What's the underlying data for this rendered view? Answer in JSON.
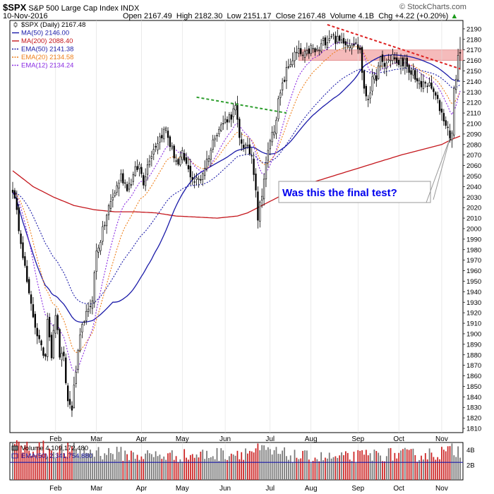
{
  "header": {
    "ticker": "$SPX",
    "description": "S&P 500 Large Cap Index",
    "exchange": "INDX",
    "date": "10-Nov-2016",
    "open_label": "Open",
    "open": "2167.49",
    "high_label": "High",
    "high": "2182.30",
    "low_label": "Low",
    "low": "2151.17",
    "close_label": "Close",
    "close": "2167.48",
    "volume_label": "Volume",
    "volume": "4.1B",
    "chg_label": "Chg",
    "chg": "+4.22 (+0.20%)",
    "watermark": "© StockCharts.com"
  },
  "legend": [
    {
      "label": "$SPX (Daily) 2167.48",
      "color": "#000000",
      "style": "candle"
    },
    {
      "label": "MA(50) 2146.00",
      "color": "#1a1aa8",
      "style": "solid"
    },
    {
      "label": "MA(200) 2088.40",
      "color": "#c4161c",
      "style": "solid"
    },
    {
      "label": "EMA(50) 2141.38",
      "color": "#1a1aa8",
      "style": "dotted"
    },
    {
      "label": "EMA(20) 2134.58",
      "color": "#ee7f1a",
      "style": "dotted"
    },
    {
      "label": "EMA(12) 2134.24",
      "color": "#8a2be2",
      "style": "dotted"
    }
  ],
  "volume_legend": [
    {
      "label": "Volume 4,109,172,480",
      "color": "#000000"
    },
    {
      "label": "EMA(50) 2,341,754,880",
      "color": "#1a1aa8"
    }
  ],
  "annotation": {
    "text": "Was this the final test?"
  },
  "colors": {
    "up": "#ffffff",
    "down": "#000000",
    "volume_up": "#777777",
    "volume_down": "#cc2222",
    "resistance_band": "#f4b0b0",
    "trendline_green": "#2e9e2e",
    "trendline_red": "#dd2222"
  },
  "chart_data": {
    "type": "candlestick",
    "x_unit": "trading day index (0 = first trading day of Jan 2016)",
    "months": [
      {
        "label": "Feb",
        "index": 21
      },
      {
        "label": "Mar",
        "index": 41
      },
      {
        "label": "Apr",
        "index": 63
      },
      {
        "label": "May",
        "index": 83
      },
      {
        "label": "Jun",
        "index": 104
      },
      {
        "label": "Jul",
        "index": 126
      },
      {
        "label": "Aug",
        "index": 146
      },
      {
        "label": "Sep",
        "index": 169
      },
      {
        "label": "Oct",
        "index": 189
      },
      {
        "label": "Nov",
        "index": 210
      }
    ],
    "price_keypoints": [
      [
        0,
        2038
      ],
      [
        4,
        1990
      ],
      [
        8,
        1935
      ],
      [
        12,
        1900
      ],
      [
        14,
        1885
      ],
      [
        16,
        1880
      ],
      [
        17,
        1918
      ],
      [
        19,
        1880
      ],
      [
        21,
        1920
      ],
      [
        23,
        1880
      ],
      [
        25,
        1875
      ],
      [
        27,
        1835
      ],
      [
        29,
        1830
      ],
      [
        31,
        1865
      ],
      [
        33,
        1895
      ],
      [
        35,
        1915
      ],
      [
        37,
        1920
      ],
      [
        39,
        1935
      ],
      [
        41,
        1978
      ],
      [
        43,
        1990
      ],
      [
        45,
        2005
      ],
      [
        47,
        2020
      ],
      [
        50,
        2035
      ],
      [
        53,
        2050
      ],
      [
        56,
        2040
      ],
      [
        58,
        2045
      ],
      [
        60,
        2055
      ],
      [
        62,
        2060
      ],
      [
        64,
        2045
      ],
      [
        67,
        2068
      ],
      [
        70,
        2080
      ],
      [
        73,
        2090
      ],
      [
        75,
        2095
      ],
      [
        77,
        2080
      ],
      [
        79,
        2070
      ],
      [
        81,
        2060
      ],
      [
        83,
        2070
      ],
      [
        86,
        2055
      ],
      [
        89,
        2045
      ],
      [
        92,
        2048
      ],
      [
        95,
        2065
      ],
      [
        97,
        2075
      ],
      [
        99,
        2090
      ],
      [
        101,
        2095
      ],
      [
        103,
        2100
      ],
      [
        105,
        2105
      ],
      [
        107,
        2108
      ],
      [
        109,
        2115
      ],
      [
        111,
        2085
      ],
      [
        113,
        2080
      ],
      [
        115,
        2075
      ],
      [
        117,
        2070
      ],
      [
        119,
        2040
      ],
      [
        120,
        2010
      ],
      [
        122,
        2035
      ],
      [
        124,
        2060
      ],
      [
        126,
        2085
      ],
      [
        128,
        2095
      ],
      [
        130,
        2120
      ],
      [
        132,
        2135
      ],
      [
        134,
        2150
      ],
      [
        136,
        2158
      ],
      [
        138,
        2165
      ],
      [
        140,
        2168
      ],
      [
        142,
        2164
      ],
      [
        144,
        2166
      ],
      [
        146,
        2172
      ],
      [
        148,
        2168
      ],
      [
        150,
        2170
      ],
      [
        152,
        2178
      ],
      [
        154,
        2180
      ],
      [
        156,
        2185
      ],
      [
        158,
        2180
      ],
      [
        160,
        2178
      ],
      [
        162,
        2180
      ],
      [
        164,
        2176
      ],
      [
        166,
        2178
      ],
      [
        168,
        2175
      ],
      [
        170,
        2170
      ],
      [
        172,
        2130
      ],
      [
        174,
        2125
      ],
      [
        176,
        2140
      ],
      [
        178,
        2145
      ],
      [
        180,
        2160
      ],
      [
        182,
        2155
      ],
      [
        184,
        2160
      ],
      [
        186,
        2165
      ],
      [
        188,
        2155
      ],
      [
        190,
        2160
      ],
      [
        192,
        2158
      ],
      [
        194,
        2145
      ],
      [
        196,
        2150
      ],
      [
        198,
        2140
      ],
      [
        200,
        2135
      ],
      [
        202,
        2140
      ],
      [
        204,
        2135
      ],
      [
        206,
        2130
      ],
      [
        208,
        2120
      ],
      [
        210,
        2110
      ],
      [
        212,
        2100
      ],
      [
        214,
        2088
      ],
      [
        215,
        2090
      ],
      [
        216,
        2130
      ],
      [
        217,
        2145
      ],
      [
        218,
        2165
      ],
      [
        219,
        2168
      ]
    ],
    "ma200_keypoints": [
      [
        0,
        2055
      ],
      [
        10,
        2040
      ],
      [
        20,
        2030
      ],
      [
        30,
        2022
      ],
      [
        40,
        2018
      ],
      [
        50,
        2016
      ],
      [
        60,
        2016
      ],
      [
        70,
        2015
      ],
      [
        80,
        2012
      ],
      [
        90,
        2011
      ],
      [
        100,
        2010
      ],
      [
        110,
        2012
      ],
      [
        115,
        2015
      ],
      [
        120,
        2020
      ],
      [
        130,
        2030
      ],
      [
        140,
        2040
      ],
      [
        150,
        2046
      ],
      [
        160,
        2052
      ],
      [
        170,
        2058
      ],
      [
        180,
        2064
      ],
      [
        190,
        2070
      ],
      [
        200,
        2075
      ],
      [
        210,
        2080
      ],
      [
        215,
        2085
      ],
      [
        219,
        2088
      ]
    ],
    "volume_keypoints": [
      [
        0,
        4.6
      ],
      [
        20,
        4.1
      ],
      [
        40,
        3.9
      ],
      [
        60,
        3.4
      ],
      [
        80,
        3.3
      ],
      [
        100,
        3.5
      ],
      [
        120,
        4.0
      ],
      [
        140,
        3.2
      ],
      [
        160,
        3.0
      ],
      [
        180,
        3.5
      ],
      [
        200,
        3.4
      ],
      [
        219,
        4.1
      ]
    ],
    "volume_ema50": 2.34,
    "y_ticks": [
      1810,
      1820,
      1830,
      1840,
      1850,
      1860,
      1870,
      1880,
      1890,
      1900,
      1910,
      1920,
      1930,
      1940,
      1950,
      1960,
      1970,
      1980,
      1990,
      2000,
      2010,
      2020,
      2030,
      2040,
      2050,
      2060,
      2070,
      2080,
      2090,
      2100,
      2110,
      2120,
      2130,
      2140,
      2150,
      2160,
      2170,
      2180,
      2190
    ],
    "ylim": [
      1806,
      2198
    ],
    "x_range": [
      0,
      219
    ],
    "volume_ticks": [
      {
        "label": "2B",
        "value": 2
      },
      {
        "label": "4B",
        "value": 4
      }
    ],
    "volume_ylim": [
      0,
      5
    ],
    "resistance_band": [
      2160,
      2170
    ],
    "green_trendline": {
      "from": [
        90,
        2125
      ],
      "to": [
        134,
        2110
      ]
    },
    "red_trendline": {
      "from": [
        154,
        2194
      ],
      "to": [
        219,
        2152
      ]
    },
    "ma_periods": {
      "ma50": 50,
      "ema50": 50,
      "ema20": 20,
      "ema12": 12
    }
  }
}
